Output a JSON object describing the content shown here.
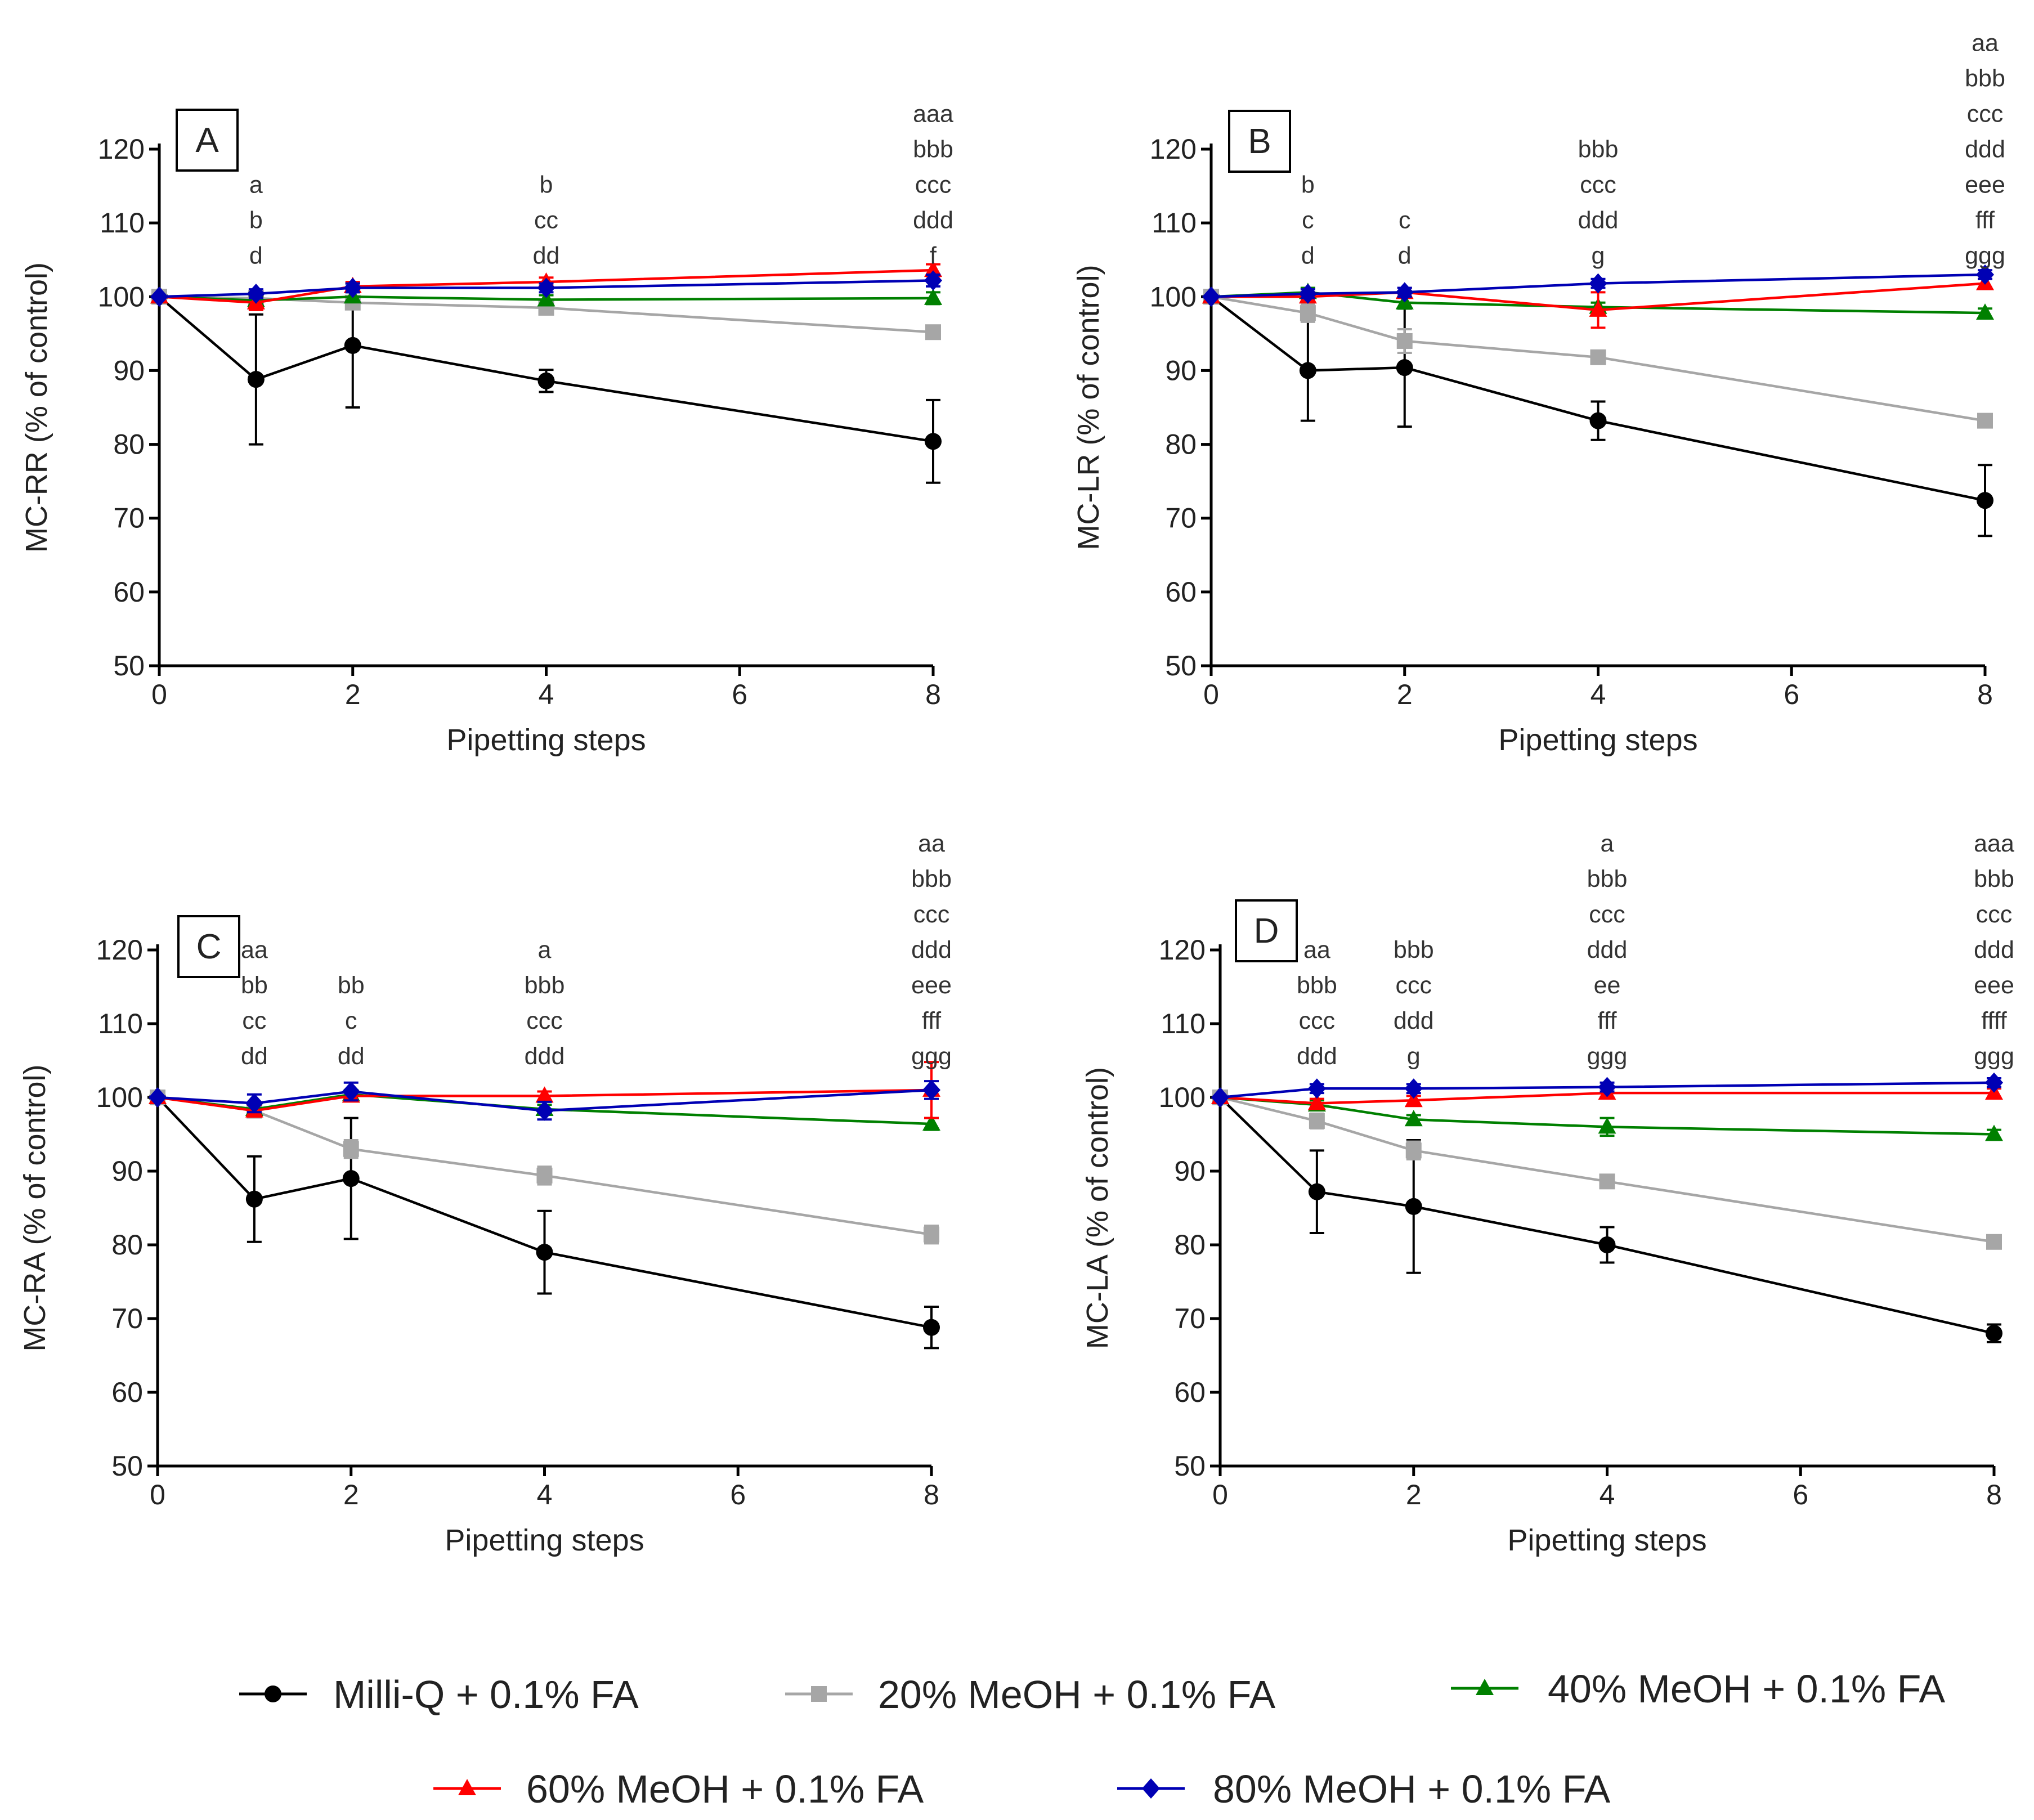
{
  "figure": {
    "x_axis_label": "Pipetting steps",
    "y_axis_suffix": "(% of control)"
  },
  "colors": {
    "milliq": "#000000",
    "meoh20": "#a6a6a6",
    "meoh40": "#008000",
    "meoh60": "#ff0000",
    "meoh80": "#0000b4"
  },
  "legend": [
    {
      "key": "milliq",
      "label": "Milli-Q + 0.1% FA",
      "marker": "circle"
    },
    {
      "key": "meoh20",
      "label": "20% MeOH + 0.1% FA",
      "marker": "square"
    },
    {
      "key": "meoh40",
      "label": "40% MeOH + 0.1% FA",
      "marker": "triangle"
    },
    {
      "key": "meoh60",
      "label": "60% MeOH + 0.1% FA",
      "marker": "triangle"
    },
    {
      "key": "meoh80",
      "label": "80% MeOH + 0.1% FA",
      "marker": "diamond"
    }
  ],
  "chart_data": [
    {
      "panel": "A",
      "type": "line",
      "ylabel": "MC-RR (% of control)",
      "xlabel": "Pipetting steps",
      "xlim": [
        0,
        8
      ],
      "ylim": [
        50,
        120
      ],
      "xticks": [
        "0",
        "2",
        "4",
        "6",
        "8"
      ],
      "yticks": [
        "50",
        "60",
        "70",
        "80",
        "90",
        "100",
        "110",
        "120"
      ],
      "series": [
        {
          "key": "milliq",
          "name": "Milli-Q + 0.1% FA",
          "x": [
            0,
            1,
            2,
            4,
            8
          ],
          "y": [
            100,
            88.8,
            93.4,
            88.6,
            80.4
          ],
          "err": [
            0,
            8.8,
            8.4,
            1.5,
            5.6
          ]
        },
        {
          "key": "meoh20",
          "name": "20% MeOH + 0.1% FA",
          "x": [
            0,
            1,
            2,
            4,
            8
          ],
          "y": [
            100,
            99.8,
            99.2,
            98.5,
            95.2
          ],
          "err": [
            0,
            0.6,
            0.6,
            0.6,
            0.6
          ]
        },
        {
          "key": "meoh40",
          "name": "40% MeOH + 0.1% FA",
          "x": [
            0,
            1,
            2,
            4,
            8
          ],
          "y": [
            100,
            99.5,
            100.0,
            99.6,
            99.8
          ],
          "err": [
            0,
            0.6,
            0.6,
            0.6,
            0.8
          ]
        },
        {
          "key": "meoh60",
          "name": "60% MeOH + 0.1% FA",
          "x": [
            0,
            1,
            2,
            4,
            8
          ],
          "y": [
            100,
            99.2,
            101.4,
            102.0,
            103.6
          ],
          "err": [
            0,
            1.0,
            0.6,
            0.6,
            0.8
          ]
        },
        {
          "key": "meoh80",
          "name": "80% MeOH + 0.1% FA",
          "x": [
            0,
            1,
            2,
            4,
            8
          ],
          "y": [
            100,
            100.4,
            101.2,
            101.2,
            102.2
          ],
          "err": [
            0,
            0.6,
            0.6,
            0.6,
            0.8
          ]
        }
      ],
      "annotations": [
        {
          "x": 1,
          "lines": [
            "a",
            "b",
            "d"
          ]
        },
        {
          "x": 4,
          "lines": [
            "b",
            "cc",
            "dd"
          ]
        },
        {
          "x": 8,
          "lines": [
            "aaa",
            "bbb",
            "ccc",
            "ddd",
            "f"
          ]
        }
      ]
    },
    {
      "panel": "B",
      "type": "line",
      "ylabel": "MC-LR (% of control)",
      "xlabel": "Pipetting steps",
      "xlim": [
        0,
        8
      ],
      "ylim": [
        50,
        120
      ],
      "xticks": [
        "0",
        "2",
        "4",
        "6",
        "8"
      ],
      "yticks": [
        "50",
        "60",
        "70",
        "80",
        "90",
        "100",
        "110",
        "120"
      ],
      "series": [
        {
          "key": "milliq",
          "name": "Milli-Q + 0.1% FA",
          "x": [
            0,
            1,
            2,
            4,
            8
          ],
          "y": [
            100,
            90.0,
            90.4,
            83.2,
            72.4
          ],
          "err": [
            0,
            6.8,
            8.0,
            2.6,
            4.8
          ]
        },
        {
          "key": "meoh20",
          "name": "20% MeOH + 0.1% FA",
          "x": [
            0,
            1,
            2,
            4,
            8
          ],
          "y": [
            100,
            97.8,
            94.0,
            91.8,
            83.2
          ],
          "err": [
            0,
            1.2,
            1.6,
            0.8,
            0.6
          ]
        },
        {
          "key": "meoh40",
          "name": "40% MeOH + 0.1% FA",
          "x": [
            0,
            1,
            2,
            4,
            8
          ],
          "y": [
            100,
            100.6,
            99.2,
            98.6,
            97.8
          ],
          "err": [
            0,
            0.6,
            0.8,
            0.6,
            0.6
          ]
        },
        {
          "key": "meoh60",
          "name": "60% MeOH + 0.1% FA",
          "x": [
            0,
            1,
            2,
            4,
            8
          ],
          "y": [
            100,
            100.0,
            100.6,
            98.2,
            101.8
          ],
          "err": [
            0,
            0.6,
            0.6,
            2.4,
            0.6
          ]
        },
        {
          "key": "meoh80",
          "name": "80% MeOH + 0.1% FA",
          "x": [
            0,
            1,
            2,
            4,
            8
          ],
          "y": [
            100,
            100.4,
            100.6,
            101.8,
            103.0
          ],
          "err": [
            0,
            0.6,
            0.6,
            0.6,
            0.6
          ]
        }
      ],
      "annotations": [
        {
          "x": 1,
          "lines": [
            "b",
            "c",
            "d"
          ]
        },
        {
          "x": 2,
          "lines": [
            "c",
            "d"
          ]
        },
        {
          "x": 4,
          "lines": [
            "bbb",
            "ccc",
            "ddd",
            "g"
          ]
        },
        {
          "x": 8,
          "lines": [
            "aa",
            "bbb",
            "ccc",
            "ddd",
            "eee",
            "fff",
            "ggg"
          ]
        }
      ]
    },
    {
      "panel": "C",
      "type": "line",
      "ylabel": "MC-RA (% of control)",
      "xlabel": "Pipetting steps",
      "xlim": [
        0,
        8
      ],
      "ylim": [
        50,
        120
      ],
      "xticks": [
        "0",
        "2",
        "4",
        "6",
        "8"
      ],
      "yticks": [
        "50",
        "60",
        "70",
        "80",
        "90",
        "100",
        "110",
        "120"
      ],
      "series": [
        {
          "key": "milliq",
          "name": "Milli-Q + 0.1% FA",
          "x": [
            0,
            1,
            2,
            4,
            8
          ],
          "y": [
            100,
            86.2,
            89.0,
            79.0,
            68.8
          ],
          "err": [
            0,
            5.8,
            8.2,
            5.6,
            2.8
          ]
        },
        {
          "key": "meoh20",
          "name": "20% MeOH + 0.1% FA",
          "x": [
            0,
            1,
            2,
            4,
            8
          ],
          "y": [
            100,
            98.2,
            93.0,
            89.4,
            81.4
          ],
          "err": [
            0,
            0.8,
            1.2,
            1.2,
            1.2
          ]
        },
        {
          "key": "meoh40",
          "name": "40% MeOH + 0.1% FA",
          "x": [
            0,
            1,
            2,
            4,
            8
          ],
          "y": [
            100,
            98.4,
            100.4,
            98.4,
            96.4
          ],
          "err": [
            0,
            0.8,
            0.6,
            0.6,
            0.8
          ]
        },
        {
          "key": "meoh60",
          "name": "60% MeOH + 0.1% FA",
          "x": [
            0,
            1,
            2,
            4,
            8
          ],
          "y": [
            100,
            98.2,
            100.2,
            100.2,
            101.0
          ],
          "err": [
            0,
            0.8,
            0.6,
            0.6,
            3.8
          ]
        },
        {
          "key": "meoh80",
          "name": "80% MeOH + 0.1% FA",
          "x": [
            0,
            1,
            2,
            4,
            8
          ],
          "y": [
            100,
            99.2,
            100.8,
            98.2,
            101.0
          ],
          "err": [
            0,
            1.2,
            1.2,
            1.2,
            1.2
          ]
        }
      ],
      "annotations": [
        {
          "x": 1,
          "lines": [
            "aa",
            "bb",
            "cc",
            "dd"
          ]
        },
        {
          "x": 2,
          "lines": [
            "bb",
            "c",
            "dd"
          ]
        },
        {
          "x": 4,
          "lines": [
            "a",
            "bbb",
            "ccc",
            "ddd"
          ]
        },
        {
          "x": 8,
          "lines": [
            "aa",
            "bbb",
            "ccc",
            "ddd",
            "eee",
            "fff",
            "ggg"
          ]
        }
      ]
    },
    {
      "panel": "D",
      "type": "line",
      "ylabel": "MC-LA (% of control)",
      "xlabel": "Pipetting steps",
      "xlim": [
        0,
        8
      ],
      "ylim": [
        50,
        120
      ],
      "xticks": [
        "0",
        "2",
        "4",
        "6",
        "8"
      ],
      "yticks": [
        "50",
        "60",
        "70",
        "80",
        "90",
        "100",
        "110",
        "120"
      ],
      "series": [
        {
          "key": "milliq",
          "name": "Milli-Q + 0.1% FA",
          "x": [
            0,
            1,
            2,
            4,
            8
          ],
          "y": [
            100,
            87.2,
            85.2,
            80.0,
            68.0
          ],
          "err": [
            0,
            5.6,
            9.0,
            2.4,
            1.2
          ]
        },
        {
          "key": "meoh20",
          "name": "20% MeOH + 0.1% FA",
          "x": [
            0,
            1,
            2,
            4,
            8
          ],
          "y": [
            100,
            96.8,
            92.8,
            88.6,
            80.4
          ],
          "err": [
            0,
            1.0,
            1.2,
            0.8,
            0.8
          ]
        },
        {
          "key": "meoh40",
          "name": "40% MeOH + 0.1% FA",
          "x": [
            0,
            1,
            2,
            4,
            8
          ],
          "y": [
            100,
            99.0,
            97.0,
            96.0,
            95.0
          ],
          "err": [
            0,
            0.6,
            0.6,
            1.2,
            0.6
          ]
        },
        {
          "key": "meoh60",
          "name": "60% MeOH + 0.1% FA",
          "x": [
            0,
            1,
            2,
            4,
            8
          ],
          "y": [
            100,
            99.2,
            99.6,
            100.6,
            100.6
          ],
          "err": [
            0,
            0.6,
            0.6,
            0.6,
            0.6
          ]
        },
        {
          "key": "meoh80",
          "name": "80% MeOH + 0.1% FA",
          "x": [
            0,
            1,
            2,
            4,
            8
          ],
          "y": [
            100,
            101.2,
            101.2,
            101.4,
            102.0
          ],
          "err": [
            0,
            0.6,
            0.6,
            0.6,
            0.6
          ]
        }
      ],
      "annotations": [
        {
          "x": 1,
          "lines": [
            "aa",
            "bbb",
            "ccc",
            "ddd"
          ]
        },
        {
          "x": 2,
          "lines": [
            "bbb",
            "ccc",
            "ddd",
            "g"
          ]
        },
        {
          "x": 4,
          "lines": [
            "a",
            "bbb",
            "ccc",
            "ddd",
            "ee",
            "fff",
            "ggg"
          ]
        },
        {
          "x": 8,
          "lines": [
            "aaa",
            "bbb",
            "ccc",
            "ddd",
            "eee",
            "ffff",
            "ggg"
          ]
        }
      ]
    }
  ]
}
